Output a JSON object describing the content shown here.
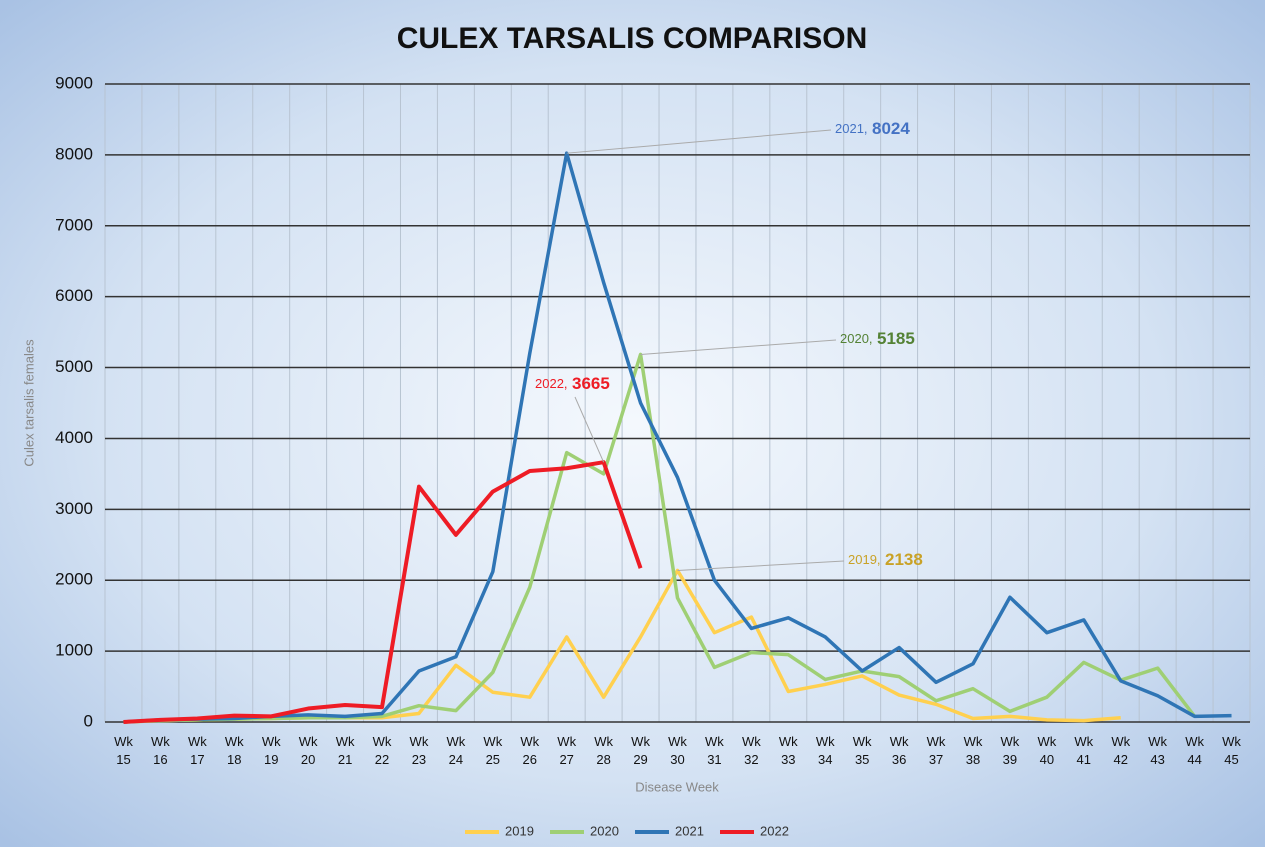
{
  "chart_data": {
    "type": "line",
    "title": "CULEX TARSALIS COMPARISON",
    "x_label": "Disease Week",
    "y_label": "Culex tarsalis females",
    "categories": [
      "Wk 15",
      "Wk 16",
      "Wk 17",
      "Wk 18",
      "Wk 19",
      "Wk 20",
      "Wk 21",
      "Wk 22",
      "Wk 23",
      "Wk 24",
      "Wk 25",
      "Wk 26",
      "Wk 27",
      "Wk 28",
      "Wk 29",
      "Wk 30",
      "Wk 31",
      "Wk 32",
      "Wk 33",
      "Wk 34",
      "Wk 35",
      "Wk 36",
      "Wk 37",
      "Wk 38",
      "Wk 39",
      "Wk 40",
      "Wk 41",
      "Wk 42",
      "Wk 43",
      "Wk 44",
      "Wk 45"
    ],
    "ylim": [
      0,
      9000
    ],
    "yticks": [
      0,
      1000,
      2000,
      3000,
      4000,
      5000,
      6000,
      7000,
      8000,
      9000
    ],
    "grid": true,
    "legend": "bottom",
    "series": [
      {
        "name": "2019",
        "color": "#ffd04f",
        "values": [
          0,
          20,
          30,
          40,
          50,
          60,
          60,
          60,
          120,
          800,
          420,
          350,
          1200,
          350,
          1200,
          2138,
          1260,
          1480,
          430,
          530,
          650,
          380,
          250,
          50,
          80,
          30,
          20,
          60,
          null,
          null,
          null
        ]
      },
      {
        "name": "2020",
        "color": "#9fcf74",
        "values": [
          0,
          20,
          30,
          40,
          50,
          60,
          60,
          80,
          230,
          160,
          700,
          1900,
          3800,
          3500,
          5185,
          1750,
          770,
          980,
          950,
          600,
          720,
          640,
          300,
          470,
          150,
          350,
          840,
          590,
          760,
          80,
          null
        ]
      },
      {
        "name": "2021",
        "color": "#2f75b5",
        "values": [
          0,
          30,
          40,
          50,
          80,
          100,
          80,
          120,
          720,
          920,
          2120,
          5200,
          8024,
          6200,
          4500,
          3450,
          2000,
          1320,
          1470,
          1200,
          720,
          1050,
          560,
          820,
          1760,
          1260,
          1440,
          580,
          370,
          80,
          90
        ]
      },
      {
        "name": "2022",
        "color": "#ee1c25",
        "values": [
          0,
          30,
          50,
          90,
          80,
          190,
          240,
          210,
          3320,
          2640,
          3250,
          3540,
          3580,
          3665,
          2170,
          null,
          null,
          null,
          null,
          null,
          null,
          null,
          null,
          null,
          null,
          null,
          null,
          null,
          null,
          null,
          null
        ]
      }
    ],
    "annotations": [
      {
        "label": "2021,",
        "value": "8024",
        "color": "#4472c4"
      },
      {
        "label": "2020,",
        "value": "5185",
        "color": "#548235"
      },
      {
        "label": "2022,",
        "value": "3665",
        "color": "#ee1c25"
      },
      {
        "label": "2019,",
        "value": "2138",
        "color": "#c9a227"
      }
    ]
  }
}
